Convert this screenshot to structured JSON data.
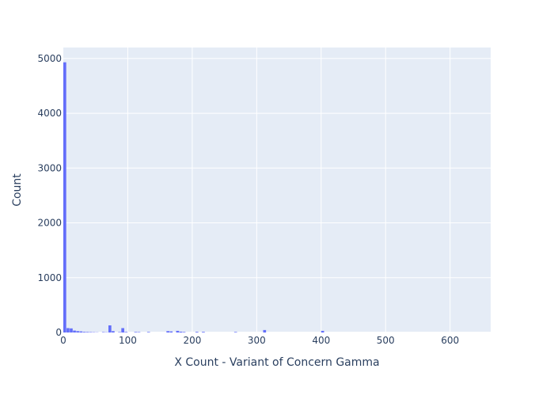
{
  "chart_data": {
    "type": "bar",
    "subtype": "histogram",
    "title": "",
    "xlabel": "X Count - Variant of Concern Gamma",
    "ylabel": "Count",
    "xlim": [
      0,
      663
    ],
    "ylim": [
      0,
      5200
    ],
    "x_ticks": [
      0,
      100,
      200,
      300,
      400,
      500,
      600
    ],
    "y_ticks": [
      0,
      1000,
      2000,
      3000,
      4000,
      5000
    ],
    "grid": true,
    "legend": "none",
    "bin_width": 5,
    "bins": [
      {
        "x0": 0,
        "x1": 5,
        "value": 4930
      },
      {
        "x0": 5,
        "x1": 10,
        "value": 80
      },
      {
        "x0": 10,
        "x1": 15,
        "value": 75
      },
      {
        "x0": 15,
        "x1": 20,
        "value": 35
      },
      {
        "x0": 20,
        "x1": 25,
        "value": 25
      },
      {
        "x0": 25,
        "x1": 30,
        "value": 20
      },
      {
        "x0": 30,
        "x1": 35,
        "value": 12
      },
      {
        "x0": 35,
        "x1": 40,
        "value": 10
      },
      {
        "x0": 40,
        "x1": 45,
        "value": 8
      },
      {
        "x0": 45,
        "x1": 50,
        "value": 6
      },
      {
        "x0": 50,
        "x1": 55,
        "value": 4
      },
      {
        "x0": 60,
        "x1": 65,
        "value": 8
      },
      {
        "x0": 65,
        "x1": 70,
        "value": 5
      },
      {
        "x0": 70,
        "x1": 75,
        "value": 130
      },
      {
        "x0": 75,
        "x1": 80,
        "value": 25
      },
      {
        "x0": 85,
        "x1": 90,
        "value": 8
      },
      {
        "x0": 90,
        "x1": 95,
        "value": 80
      },
      {
        "x0": 95,
        "x1": 100,
        "value": 10
      },
      {
        "x0": 110,
        "x1": 115,
        "value": 10
      },
      {
        "x0": 115,
        "x1": 120,
        "value": 8
      },
      {
        "x0": 130,
        "x1": 135,
        "value": 10
      },
      {
        "x0": 160,
        "x1": 165,
        "value": 25
      },
      {
        "x0": 165,
        "x1": 170,
        "value": 20
      },
      {
        "x0": 175,
        "x1": 180,
        "value": 30
      },
      {
        "x0": 180,
        "x1": 185,
        "value": 15
      },
      {
        "x0": 185,
        "x1": 190,
        "value": 10
      },
      {
        "x0": 205,
        "x1": 210,
        "value": 12
      },
      {
        "x0": 215,
        "x1": 220,
        "value": 12
      },
      {
        "x0": 265,
        "x1": 270,
        "value": 10
      },
      {
        "x0": 310,
        "x1": 315,
        "value": 45
      },
      {
        "x0": 400,
        "x1": 405,
        "value": 30
      }
    ],
    "colors": {
      "bar": "#636efa",
      "plot_background": "#e5ecf6",
      "gridline": "#ffffff",
      "text": "#2a3f5f"
    }
  }
}
